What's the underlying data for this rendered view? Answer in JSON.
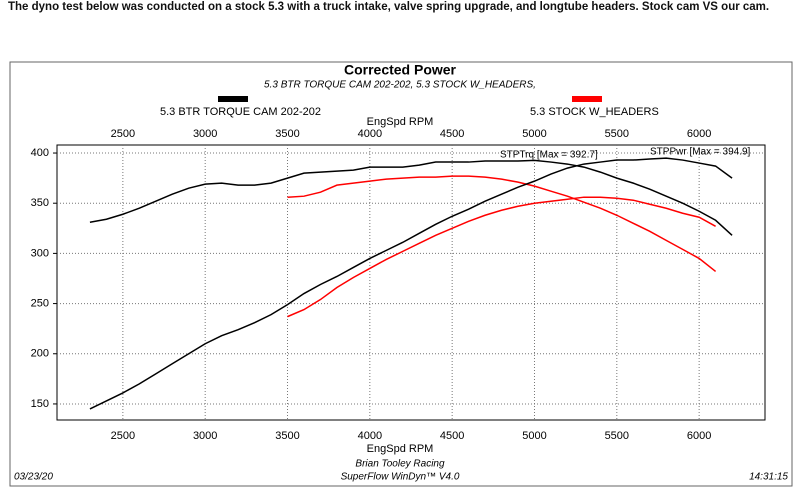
{
  "header": {
    "text": "The dyno test below was conducted on a stock 5.3 with a truck intake, valve spring upgrade, and longtube headers. Stock cam VS our cam."
  },
  "chart_data": {
    "type": "line",
    "title": "Corrected Power",
    "subtitle": "5.3 BTR TORQUE CAM 202-202, 5.3 STOCK W_HEADERS,",
    "xlabel": "EngSpd RPM",
    "xlim": [
      2100,
      6400
    ],
    "xticks": [
      2500,
      3000,
      3500,
      4000,
      4500,
      5000,
      5500,
      6000
    ],
    "ylim": [
      134,
      408
    ],
    "yticks": [
      150,
      200,
      250,
      300,
      350,
      400
    ],
    "grid": true,
    "x": [
      2300,
      2400,
      2500,
      2600,
      2700,
      2800,
      2900,
      3000,
      3100,
      3200,
      3300,
      3400,
      3500,
      3600,
      3700,
      3800,
      3900,
      4000,
      4100,
      4200,
      4300,
      4400,
      4500,
      4600,
      4700,
      4800,
      4900,
      5000,
      5100,
      5200,
      5300,
      5400,
      5500,
      5600,
      5700,
      5800,
      5900,
      6000,
      6100,
      6200
    ],
    "series": [
      {
        "name": "5.3 BTR TORQUE CAM 202-202",
        "color": "#000000",
        "values": [
          331,
          334,
          339,
          345,
          352,
          359,
          365,
          369,
          370,
          368,
          368,
          370,
          375,
          380,
          381,
          382,
          383,
          386,
          386,
          386,
          388,
          391,
          391,
          391,
          392,
          392,
          392,
          392.7,
          391,
          389,
          386,
          381,
          375,
          370,
          364,
          357,
          350,
          342,
          333,
          318
        ]
      },
      {
        "name": "5.3 STOCK W_HEADERS",
        "color": "#ff0000",
        "values": [
          null,
          null,
          null,
          null,
          null,
          null,
          null,
          null,
          null,
          null,
          null,
          null,
          356,
          357,
          361,
          368,
          370,
          372,
          374,
          375,
          376,
          376,
          377,
          377,
          376,
          374,
          371,
          367,
          362,
          357,
          351,
          345,
          338,
          330,
          322,
          313,
          304,
          295,
          282,
          null
        ]
      },
      {
        "name": "BTR power",
        "legend": false,
        "color": "#000000",
        "values": [
          145,
          153,
          161,
          170,
          180,
          190,
          200,
          210,
          218,
          224,
          231,
          239,
          249,
          260,
          269,
          277,
          286,
          295,
          303,
          311,
          320,
          329,
          337,
          344,
          352,
          359,
          366,
          372,
          379,
          385,
          389,
          391,
          393,
          393,
          394,
          394.9,
          393,
          390,
          387,
          375
        ]
      },
      {
        "name": "Stock power",
        "legend": false,
        "color": "#ff0000",
        "values": [
          null,
          null,
          null,
          null,
          null,
          null,
          null,
          null,
          null,
          null,
          null,
          null,
          237,
          244,
          254,
          266,
          276,
          285,
          294,
          302,
          310,
          318,
          325,
          332,
          338,
          343,
          347,
          350,
          352,
          354,
          356,
          356,
          355,
          353,
          349,
          345,
          340,
          336,
          327,
          null
        ]
      }
    ],
    "annotations": [
      "STPTrq [Max = 392.7]",
      "STPPwr [Max = 394.9]"
    ],
    "footer": {
      "date": "03/23/20",
      "shop": "Brian Tooley Racing",
      "software": "SuperFlow WinDyn™ V4.0",
      "time": "14:31:15"
    }
  }
}
